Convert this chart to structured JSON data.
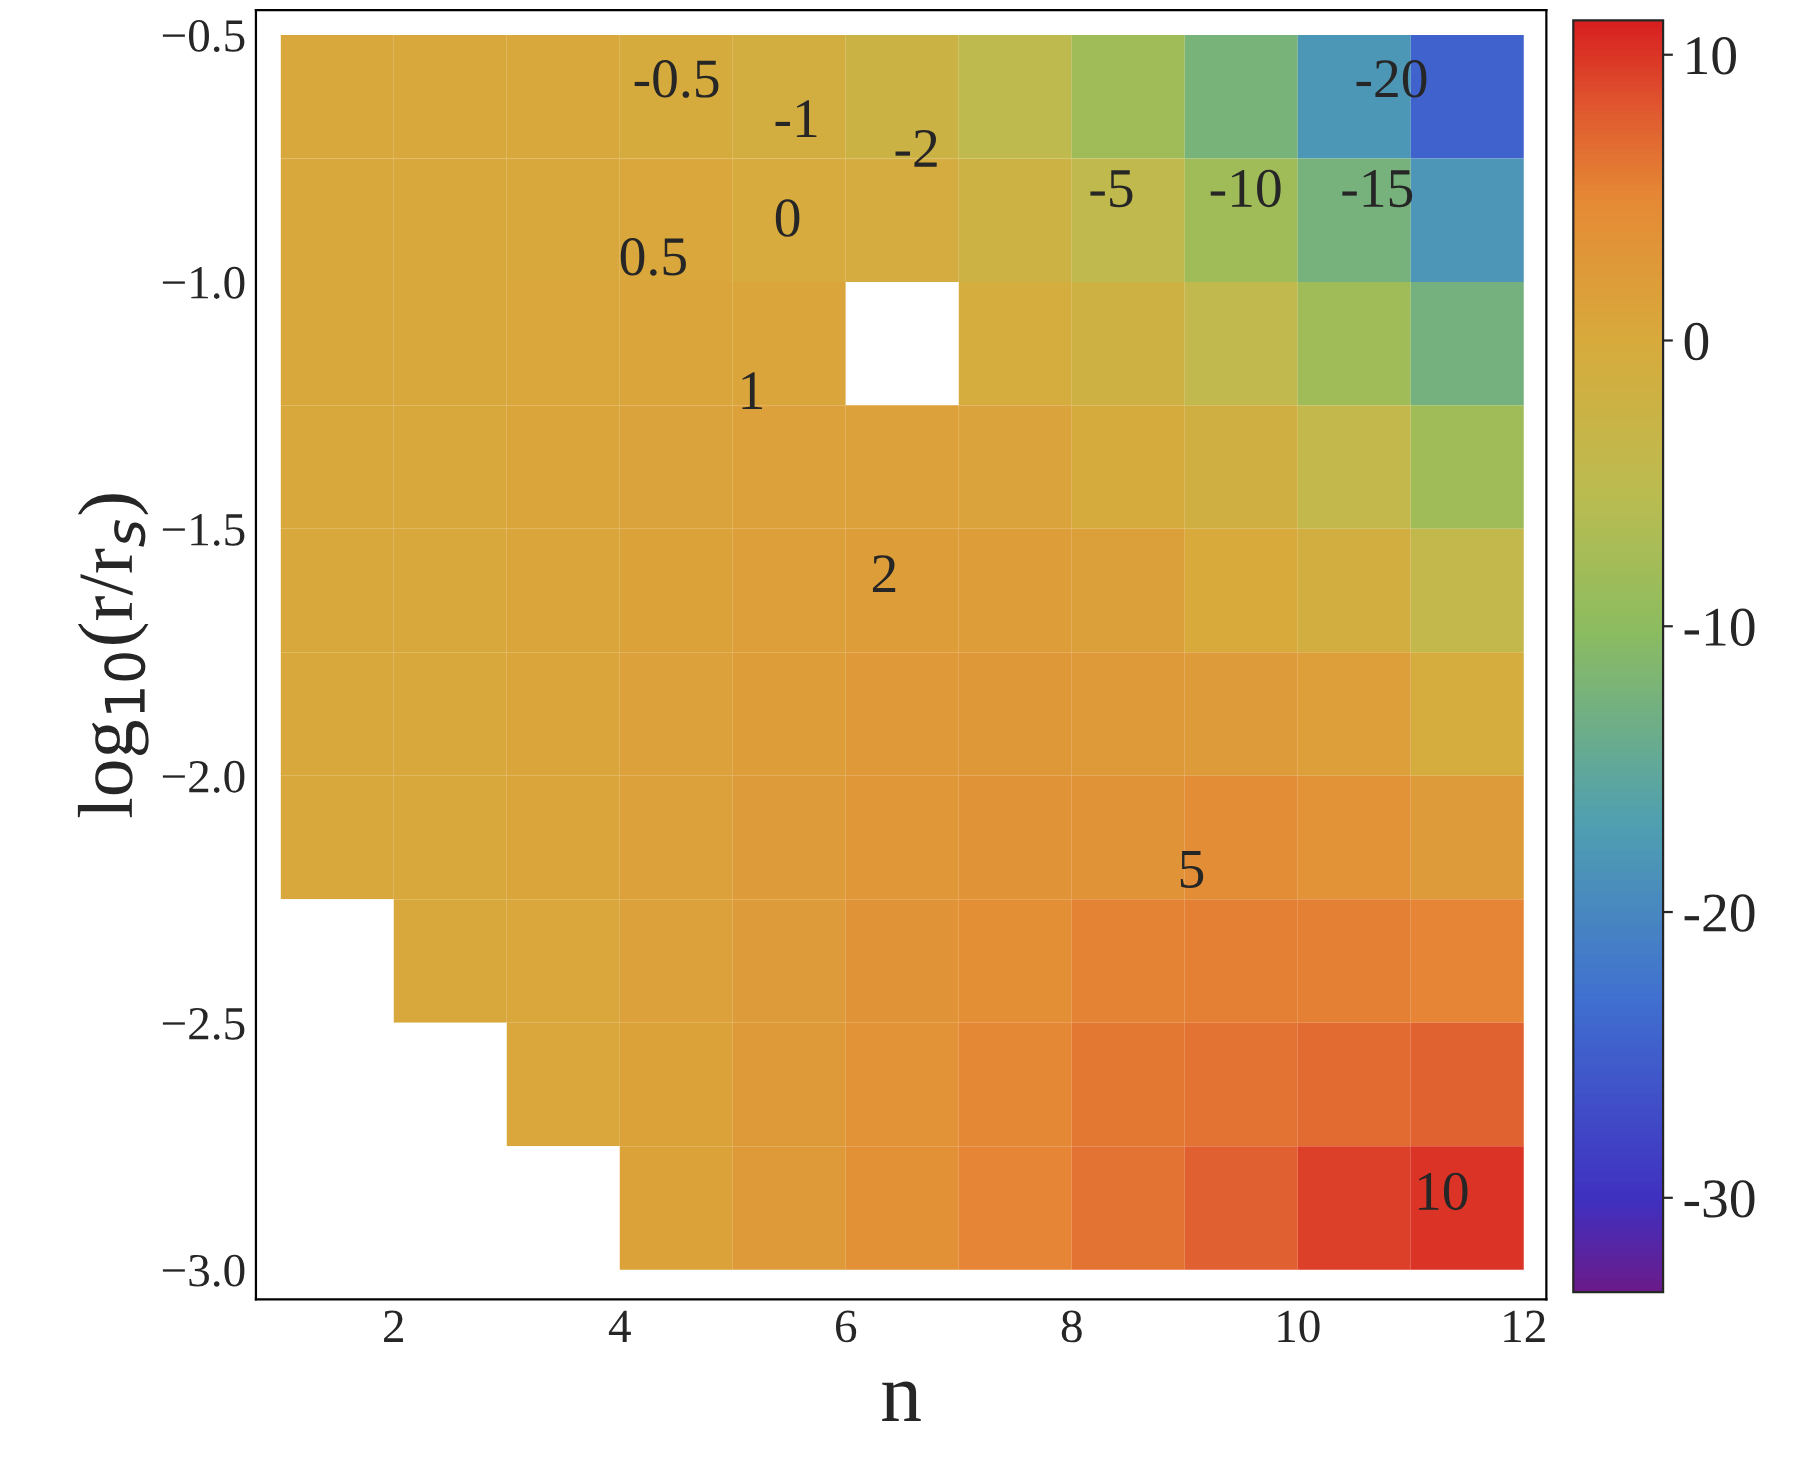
{
  "chart_data": {
    "type": "heatmap",
    "xlabel": "n",
    "ylabel": "log$_{10}$(r/r$_{s}$)",
    "x": [
      1.5,
      2.5,
      3.5,
      4.5,
      5.5,
      6.5,
      7.5,
      8.5,
      9.5,
      10.5,
      11.5
    ],
    "y": [
      -0.625,
      -0.875,
      -1.125,
      -1.375,
      -1.625,
      -1.875,
      -2.125,
      -2.375,
      -2.625,
      -2.875
    ],
    "cells": [
      [
        0.3,
        0.35,
        0.35,
        -0.33,
        -1.0,
        -2.5,
        -4.7,
        -8.1,
        -12.3,
        -17.9,
        -24.5
      ],
      [
        0.3,
        0.35,
        0.4,
        0.45,
        -0.16,
        -0.75,
        -2.2,
        -4.6,
        -8.1,
        -12.5,
        -18.1
      ],
      [
        0.3,
        0.35,
        0.55,
        0.75,
        0.7,
        null,
        -0.48,
        -1.85,
        -4.4,
        -8.1,
        -12.7
      ],
      [
        0.3,
        0.35,
        0.65,
        1.05,
        1.4,
        1.3,
        0.95,
        -0.3,
        -1.5,
        -4.2,
        -8.1
      ],
      [
        0.3,
        0.35,
        0.65,
        1.25,
        1.7,
        1.95,
        2.1,
        1.6,
        -0.06,
        -1.0,
        -4.0
      ],
      [
        0.3,
        0.35,
        0.65,
        1.3,
        1.95,
        2.6,
        2.8,
        2.5,
        2.2,
        1.8,
        -0.6
      ],
      [
        0.3,
        0.35,
        0.6,
        1.32,
        2.2,
        2.9,
        3.5,
        3.5,
        4.3,
        3.6,
        2.3
      ],
      [
        null,
        0.35,
        0.56,
        1.33,
        2.3,
        3.4,
        4.2,
        5.4,
        5.6,
        5.6,
        5.2
      ],
      [
        null,
        null,
        0.51,
        1.28,
        2.35,
        3.65,
        5.0,
        6.0,
        6.5,
        7.0,
        7.5
      ],
      [
        null,
        null,
        null,
        1.22,
        2.34,
        3.8,
        5.2,
        6.4,
        7.6,
        9.4,
        10.0
      ]
    ],
    "xlim": [
      0.78,
      12.2
    ],
    "ylim": [
      -3.06,
      -0.45
    ],
    "xticks": [
      2,
      4,
      6,
      8,
      10,
      12
    ],
    "yticks": [
      {
        "value": -3.0,
        "label": "−3.0"
      },
      {
        "value": -2.5,
        "label": "−2.5"
      },
      {
        "value": -2.0,
        "label": "−2.0"
      },
      {
        "value": -1.5,
        "label": "−1.5"
      },
      {
        "value": -1.0,
        "label": "−1.0"
      },
      {
        "value": -0.5,
        "label": "−0.5"
      }
    ],
    "clim": [
      -33.3,
      11.2
    ],
    "cticks": [
      10,
      0,
      -10,
      -20,
      -30
    ],
    "grid": false,
    "annotations": [
      "-0.5",
      "-1",
      "-2",
      "-5",
      "-10",
      "-15",
      "-20",
      "0",
      "0.5",
      "1",
      "2",
      "5",
      "10"
    ]
  }
}
